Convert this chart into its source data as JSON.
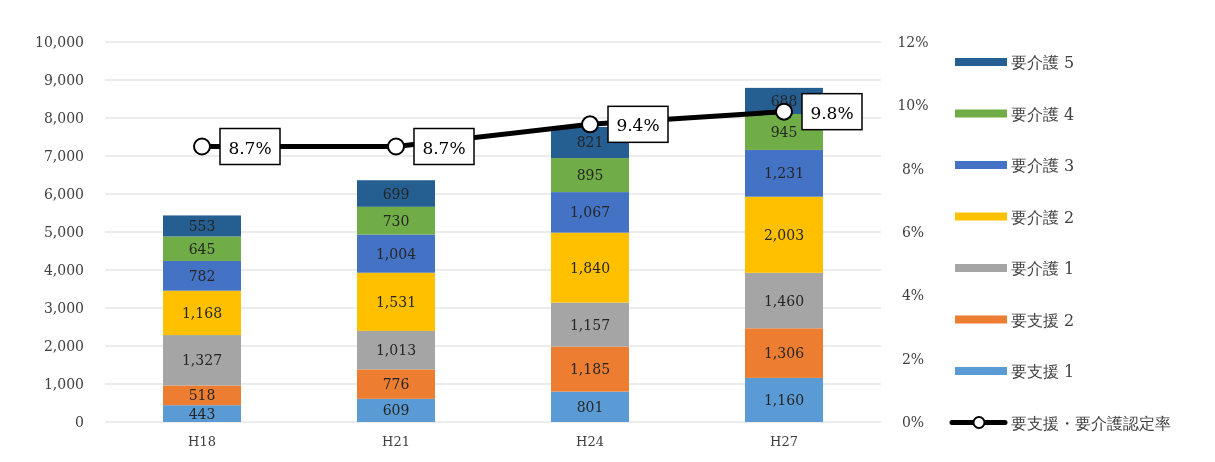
{
  "chart_data": {
    "type": "bar",
    "stacked": true,
    "categories": [
      "H18",
      "H21",
      "H24",
      "H27"
    ],
    "series": [
      {
        "name": "要支援 1",
        "color": "#5b9bd5",
        "values": [
          443,
          609,
          801,
          1160
        ],
        "value_labels": [
          "443",
          "609",
          "801",
          "1,160"
        ]
      },
      {
        "name": "要支援 2",
        "color": "#ed7d31",
        "values": [
          518,
          776,
          1185,
          1306
        ],
        "value_labels": [
          "518",
          "776",
          "1,185",
          "1,306"
        ]
      },
      {
        "name": "要介護 1",
        "color": "#a5a5a5",
        "values": [
          1327,
          1013,
          1157,
          1460
        ],
        "value_labels": [
          "1,327",
          "1,013",
          "1,157",
          "1,460"
        ]
      },
      {
        "name": "要介護 2",
        "color": "#ffc000",
        "values": [
          1168,
          1531,
          1840,
          2003
        ],
        "value_labels": [
          "1,168",
          "1,531",
          "1,840",
          "2,003"
        ]
      },
      {
        "name": "要介護 3",
        "color": "#4472c4",
        "values": [
          782,
          1004,
          1067,
          1231
        ],
        "value_labels": [
          "782",
          "1,004",
          "1,067",
          "1,231"
        ]
      },
      {
        "name": "要介護 4",
        "color": "#70ad47",
        "values": [
          645,
          730,
          895,
          945
        ],
        "value_labels": [
          "645",
          "730",
          "895",
          "945"
        ]
      },
      {
        "name": "要介護 5",
        "color": "#255e91",
        "values": [
          553,
          699,
          821,
          688
        ],
        "value_labels": [
          "553",
          "699",
          "821",
          "688"
        ]
      },
      {
        "name": "要支援・要介護認定率",
        "type": "line",
        "axis": "y2",
        "color": "#000000",
        "marker": "circle",
        "values": [
          8.7,
          8.7,
          9.4,
          9.8
        ],
        "value_labels": [
          "8.7%",
          "8.7%",
          "9.4%",
          "9.8%"
        ]
      }
    ],
    "ylim": [
      0,
      10000
    ],
    "yticks": [
      0,
      {
        "value": 1000,
        "label": "1,000"
      },
      {
        "value": 2000,
        "label": "2,000"
      },
      {
        "value": 3000,
        "label": "3,000"
      },
      {
        "value": 4000,
        "label": "4,000"
      },
      {
        "value": 5000,
        "label": "5,000"
      },
      {
        "value": 6000,
        "label": "6,000"
      },
      {
        "value": 7000,
        "label": "7,000"
      },
      {
        "value": 8000,
        "label": "8,000"
      },
      {
        "value": 9000,
        "label": "9,000"
      },
      {
        "value": 10000,
        "label": "10,000"
      }
    ],
    "y2lim": [
      0,
      12
    ],
    "y2ticks": [
      {
        "value": 0,
        "label": "0%"
      },
      {
        "value": 2,
        "label": "2%"
      },
      {
        "value": 4,
        "label": "4%"
      },
      {
        "value": 6,
        "label": "6%"
      },
      {
        "value": 8,
        "label": "8%"
      },
      {
        "value": 10,
        "label": "10%"
      },
      {
        "value": 12,
        "label": "12%"
      }
    ],
    "grid": "y",
    "legend": "right"
  }
}
